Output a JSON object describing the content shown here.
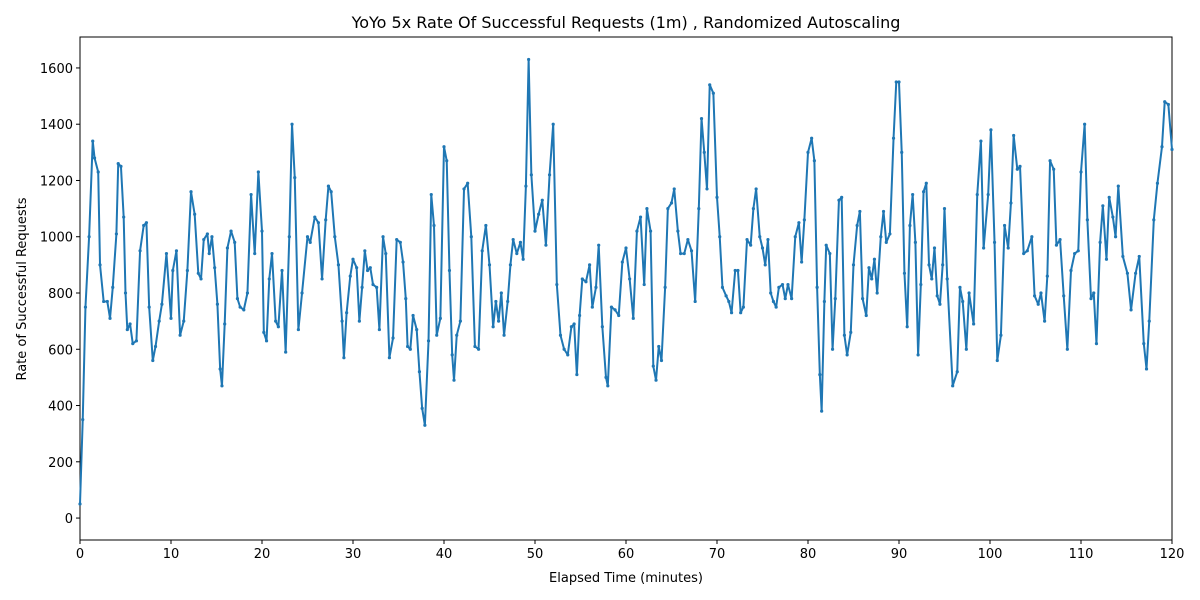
{
  "chart_data": {
    "type": "line",
    "title": "YoYo 5x Rate Of Successful Requests (1m) , Randomized Autoscaling",
    "x_label": "Elapsed Time (minutes)",
    "y_label": "Rate of Successful Requests",
    "xlim": [
      0,
      120
    ],
    "ylim": [
      -78,
      1710
    ],
    "xticks": [
      0,
      10,
      20,
      30,
      40,
      50,
      60,
      70,
      80,
      90,
      100,
      110,
      120
    ],
    "yticks": [
      0,
      200,
      400,
      600,
      800,
      1000,
      1200,
      1400,
      1600
    ],
    "grid": false,
    "x": [
      0,
      0.3,
      0.6,
      1,
      1.4,
      1.6,
      2,
      2.2,
      2.6,
      3,
      3.3,
      3.6,
      4,
      4.2,
      4.5,
      4.8,
      5,
      5.2,
      5.5,
      5.8,
      6.2,
      6.6,
      7,
      7.3,
      7.6,
      8,
      8.3,
      8.7,
      9,
      9.5,
      10,
      10.2,
      10.6,
      11,
      11.4,
      11.8,
      12.2,
      12.6,
      13,
      13.3,
      13.6,
      14,
      14.2,
      14.5,
      14.8,
      15.1,
      15.4,
      15.6,
      15.9,
      16.2,
      16.6,
      17,
      17.3,
      17.6,
      18,
      18.4,
      18.8,
      19.2,
      19.6,
      20,
      20.2,
      20.5,
      20.8,
      21.1,
      21.5,
      21.8,
      22.2,
      22.6,
      23,
      23.3,
      23.6,
      24,
      24.4,
      25,
      25.3,
      25.8,
      26.2,
      26.6,
      27,
      27.3,
      27.6,
      28,
      28.4,
      28.8,
      29,
      29.3,
      29.7,
      30,
      30.4,
      30.7,
      31,
      31.3,
      31.6,
      31.9,
      32.2,
      32.6,
      32.9,
      33.3,
      33.6,
      34,
      34.4,
      34.8,
      35.2,
      35.5,
      35.8,
      36,
      36.3,
      36.6,
      37,
      37.3,
      37.6,
      37.9,
      38.3,
      38.6,
      38.9,
      39.2,
      39.6,
      40,
      40.3,
      40.6,
      40.9,
      41.1,
      41.4,
      41.8,
      42.2,
      42.6,
      43,
      43.4,
      43.8,
      44.2,
      44.6,
      45,
      45.4,
      45.7,
      46,
      46.3,
      46.6,
      47,
      47.3,
      47.6,
      48,
      48.4,
      48.7,
      49,
      49.3,
      49.6,
      50,
      50.4,
      50.8,
      51.2,
      51.6,
      52,
      52.4,
      52.8,
      53.2,
      53.6,
      54,
      54.3,
      54.6,
      54.9,
      55.2,
      55.6,
      56,
      56.3,
      56.7,
      57,
      57.4,
      57.8,
      58,
      58.4,
      58.8,
      59.2,
      59.6,
      60,
      60.4,
      60.8,
      61.2,
      61.6,
      62,
      62.3,
      62.7,
      63,
      63.3,
      63.6,
      63.9,
      64.3,
      64.6,
      65,
      65.3,
      65.7,
      66,
      66.4,
      66.8,
      67.2,
      67.6,
      68,
      68.3,
      68.6,
      68.9,
      69.2,
      69.6,
      70,
      70.3,
      70.6,
      71,
      71.3,
      71.6,
      72,
      72.3,
      72.6,
      72.9,
      73.3,
      73.7,
      74,
      74.3,
      74.7,
      75,
      75.3,
      75.6,
      75.9,
      76.2,
      76.5,
      76.8,
      77.2,
      77.5,
      77.8,
      78.2,
      78.6,
      79,
      79.3,
      79.6,
      80,
      80.4,
      80.7,
      81,
      81.3,
      81.5,
      81.8,
      82,
      82.4,
      82.7,
      83,
      83.4,
      83.7,
      84,
      84.3,
      84.7,
      85,
      85.4,
      85.7,
      86,
      86.4,
      86.7,
      87,
      87.3,
      87.6,
      88,
      88.3,
      88.6,
      89,
      89.4,
      89.7,
      90,
      90.3,
      90.6,
      90.9,
      91.2,
      91.5,
      91.8,
      92.1,
      92.4,
      92.7,
      93,
      93.3,
      93.6,
      93.9,
      94.2,
      94.5,
      94.8,
      95,
      95.3,
      95.9,
      96.4,
      96.7,
      97,
      97.4,
      97.7,
      98.2,
      98.6,
      99,
      99.3,
      99.8,
      100.1,
      100.5,
      100.8,
      101.2,
      101.6,
      102,
      102.3,
      102.6,
      103,
      103.3,
      103.7,
      104.1,
      104.6,
      104.9,
      105.3,
      105.6,
      106,
      106.3,
      106.6,
      107,
      107.3,
      107.7,
      108.1,
      108.5,
      108.9,
      109.3,
      109.7,
      110,
      110.4,
      110.7,
      111.1,
      111.4,
      111.7,
      112.1,
      112.4,
      112.8,
      113.1,
      113.5,
      113.8,
      114.1,
      114.6,
      115.1,
      115.5,
      116,
      116.4,
      116.9,
      117.2,
      117.5,
      118,
      118.4,
      118.9,
      119.2,
      119.6,
      120
    ],
    "series": [
      {
        "name": "Rate of Successful Requests",
        "color": "#1f77b4",
        "values": [
          50,
          350,
          750,
          1000,
          1340,
          1280,
          1230,
          900,
          770,
          770,
          710,
          820,
          1010,
          1260,
          1250,
          1070,
          800,
          670,
          690,
          620,
          630,
          950,
          1040,
          1050,
          750,
          560,
          610,
          700,
          760,
          940,
          710,
          880,
          950,
          650,
          700,
          880,
          1160,
          1080,
          870,
          850,
          990,
          1010,
          940,
          1000,
          890,
          760,
          530,
          470,
          690,
          960,
          1020,
          980,
          780,
          750,
          740,
          800,
          1150,
          940,
          1230,
          1020,
          660,
          630,
          850,
          940,
          700,
          680,
          880,
          590,
          1000,
          1400,
          1210,
          670,
          800,
          1000,
          980,
          1070,
          1050,
          850,
          1060,
          1180,
          1160,
          1000,
          900,
          700,
          570,
          730,
          860,
          920,
          890,
          700,
          820,
          950,
          880,
          890,
          830,
          820,
          670,
          1000,
          940,
          570,
          640,
          990,
          980,
          910,
          780,
          610,
          600,
          720,
          670,
          520,
          390,
          330,
          630,
          1150,
          1040,
          650,
          710,
          1320,
          1270,
          880,
          580,
          490,
          650,
          700,
          1170,
          1190,
          1000,
          610,
          600,
          950,
          1040,
          900,
          680,
          770,
          700,
          800,
          650,
          770,
          900,
          990,
          940,
          980,
          920,
          1180,
          1630,
          1220,
          1020,
          1080,
          1130,
          970,
          1220,
          1400,
          830,
          650,
          600,
          580,
          680,
          690,
          510,
          720,
          850,
          840,
          900,
          750,
          820,
          970,
          680,
          500,
          470,
          750,
          740,
          720,
          910,
          960,
          850,
          710,
          1020,
          1070,
          830,
          1100,
          1020,
          540,
          490,
          610,
          560,
          820,
          1100,
          1120,
          1170,
          1020,
          940,
          940,
          990,
          950,
          770,
          1100,
          1420,
          1300,
          1170,
          1540,
          1510,
          1140,
          1000,
          820,
          790,
          770,
          730,
          880,
          880,
          730,
          750,
          990,
          970,
          1100,
          1170,
          1000,
          960,
          900,
          990,
          800,
          770,
          750,
          820,
          830,
          780,
          830,
          780,
          1000,
          1050,
          910,
          1060,
          1300,
          1350,
          1270,
          820,
          510,
          380,
          770,
          970,
          940,
          600,
          780,
          1130,
          1140,
          650,
          580,
          660,
          900,
          1040,
          1090,
          780,
          720,
          890,
          850,
          920,
          800,
          1000,
          1090,
          980,
          1010,
          1350,
          1550,
          1550,
          1300,
          870,
          680,
          1040,
          1150,
          980,
          580,
          830,
          1160,
          1190,
          900,
          850,
          960,
          790,
          760,
          900,
          1100,
          850,
          470,
          520,
          820,
          770,
          600,
          800,
          690,
          1150,
          1340,
          960,
          1150,
          1380,
          980,
          560,
          650,
          1040,
          960,
          1120,
          1360,
          1240,
          1250,
          940,
          950,
          1000,
          790,
          760,
          800,
          700,
          860,
          1270,
          1240,
          970,
          990,
          790,
          600,
          880,
          940,
          950,
          1230,
          1400,
          1060,
          780,
          800,
          620,
          980,
          1110,
          920,
          1140,
          1070,
          1000,
          1180,
          930,
          870,
          740,
          870,
          930,
          620,
          530,
          700,
          1060,
          1190,
          1320,
          1480,
          1470,
          1310
        ]
      }
    ]
  }
}
